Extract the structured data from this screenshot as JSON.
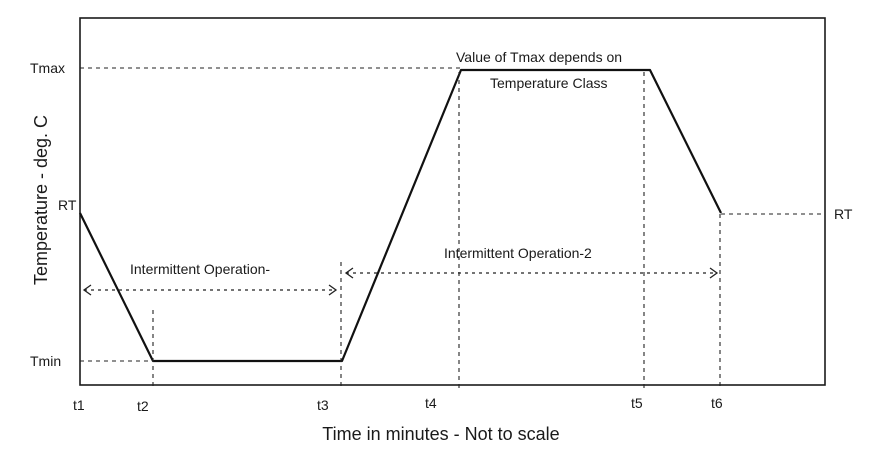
{
  "axes": {
    "y_title": "Temperature - deg. C",
    "x_title": "Time in minutes - Not to scale"
  },
  "levels": {
    "tmax": "Tmax",
    "rt_left": "RT",
    "rt_right": "RT",
    "tmin": "Tmin"
  },
  "time_labels": {
    "t1": "t1",
    "t2": "t2",
    "t3": "t3",
    "t4": "t4",
    "t5": "t5",
    "t6": "t6"
  },
  "annotations": {
    "tmax_note_line1": "Value of Tmax depends on",
    "tmax_note_line2": "Temperature Class",
    "op1": "Intermittent Operation-",
    "op2": "Intermittent Operation-2"
  }
}
